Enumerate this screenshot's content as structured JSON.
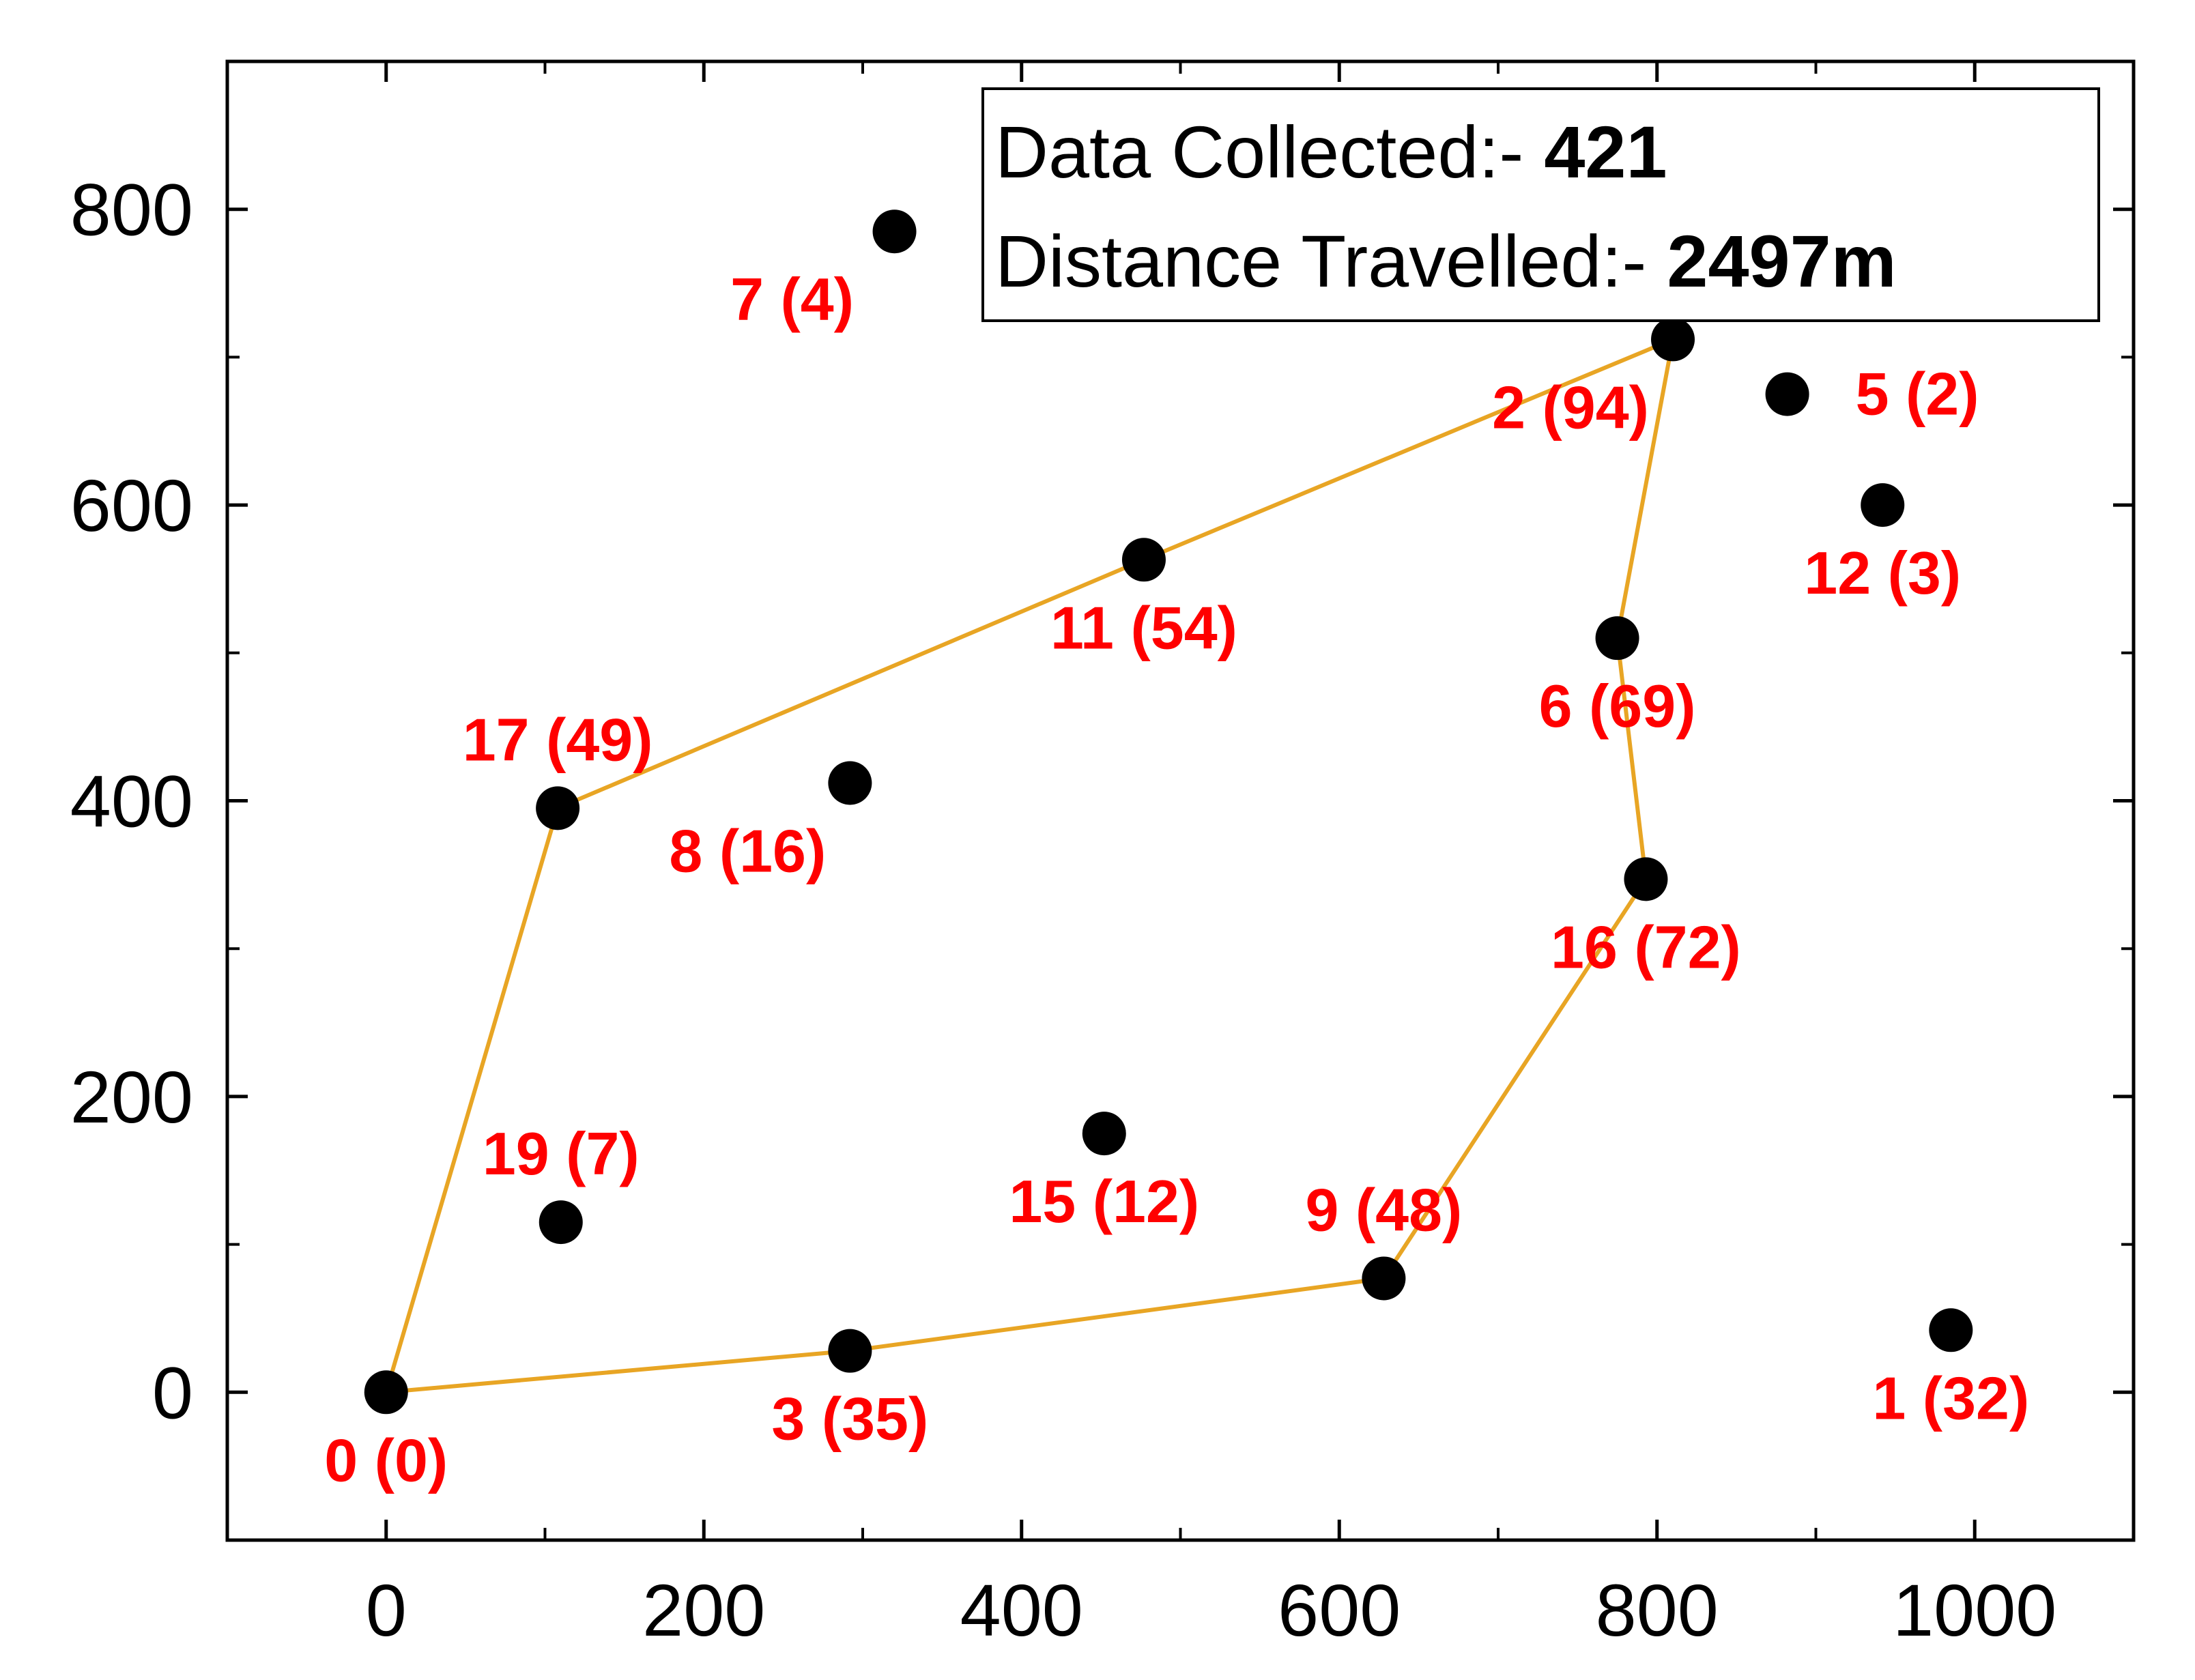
{
  "chart_data": {
    "type": "scatter",
    "title": "",
    "xlabel": "",
    "ylabel": "",
    "xlim": [
      -100,
      1100
    ],
    "ylim": [
      -100,
      900
    ],
    "xticks": [
      0,
      200,
      400,
      600,
      800,
      1000
    ],
    "yticks": [
      0,
      200,
      400,
      600,
      800
    ],
    "grid": false,
    "colors": {
      "point": "#000000",
      "label": "#ff0000",
      "route": "#e8a524"
    },
    "points": [
      {
        "x": 0,
        "y": 0,
        "label": "0 (0)",
        "label_pos": "below"
      },
      {
        "x": 985,
        "y": 42,
        "label": "1 (32)",
        "label_pos": "below"
      },
      {
        "x": 810,
        "y": 712,
        "label": "2 (94)",
        "label_pos": "below-left"
      },
      {
        "x": 292,
        "y": 28,
        "label": "3 (35)",
        "label_pos": "below"
      },
      {
        "x": 882,
        "y": 675,
        "label": "5 (2)",
        "label_pos": "right"
      },
      {
        "x": 775,
        "y": 510,
        "label": "6 (69)",
        "label_pos": "below"
      },
      {
        "x": 320,
        "y": 785,
        "label": "7 (4)",
        "label_pos": "below-left"
      },
      {
        "x": 292,
        "y": 412,
        "label": "8 (16)",
        "label_pos": "below-left"
      },
      {
        "x": 628,
        "y": 77,
        "label": "9 (48)",
        "label_pos": "above"
      },
      {
        "x": 477,
        "y": 563,
        "label": "11 (54)",
        "label_pos": "below"
      },
      {
        "x": 942,
        "y": 600,
        "label": "12 (3)",
        "label_pos": "below"
      },
      {
        "x": 452,
        "y": 175,
        "label": "15 (12)",
        "label_pos": "below"
      },
      {
        "x": 793,
        "y": 347,
        "label": "16 (72)",
        "label_pos": "below"
      },
      {
        "x": 108,
        "y": 395,
        "label": "17 (49)",
        "label_pos": "above"
      },
      {
        "x": 110,
        "y": 115,
        "label": "19 (7)",
        "label_pos": "above"
      }
    ],
    "route": [
      {
        "x": 0,
        "y": 0
      },
      {
        "x": 108,
        "y": 395
      },
      {
        "x": 477,
        "y": 563
      },
      {
        "x": 810,
        "y": 712
      },
      {
        "x": 775,
        "y": 510
      },
      {
        "x": 793,
        "y": 347
      },
      {
        "x": 628,
        "y": 77
      },
      {
        "x": 292,
        "y": 28
      },
      {
        "x": 0,
        "y": 0
      }
    ],
    "annotation": {
      "placement": "top-right",
      "rows": [
        {
          "label": "Data Collected:- ",
          "value": "421"
        },
        {
          "label": "Distance Travelled:- ",
          "value": "2497m"
        }
      ]
    }
  }
}
